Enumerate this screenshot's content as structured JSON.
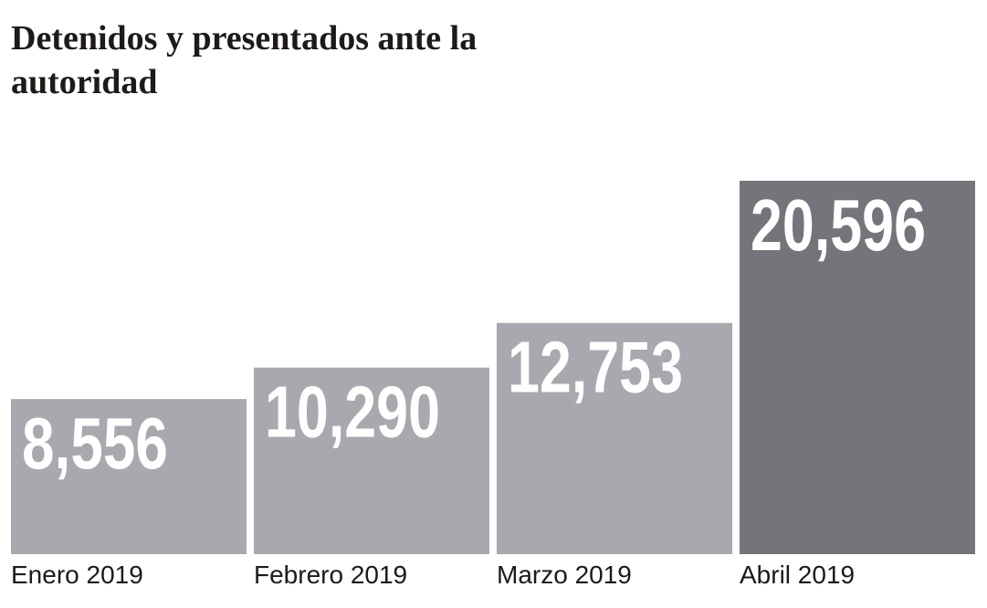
{
  "chart_data": {
    "type": "bar",
    "title": "Detenidos y presentados ante la autoridad",
    "categories": [
      "Enero 2019",
      "Febrero 2019",
      "Marzo 2019",
      "Abril 2019"
    ],
    "values": [
      8556,
      10290,
      12753,
      20596
    ],
    "value_labels": [
      "8,556",
      "10,290",
      "12,753",
      "20,596"
    ],
    "colors": [
      "#a9a8ae",
      "#a9a8ae",
      "#a9a8ae",
      "#75747a"
    ]
  }
}
